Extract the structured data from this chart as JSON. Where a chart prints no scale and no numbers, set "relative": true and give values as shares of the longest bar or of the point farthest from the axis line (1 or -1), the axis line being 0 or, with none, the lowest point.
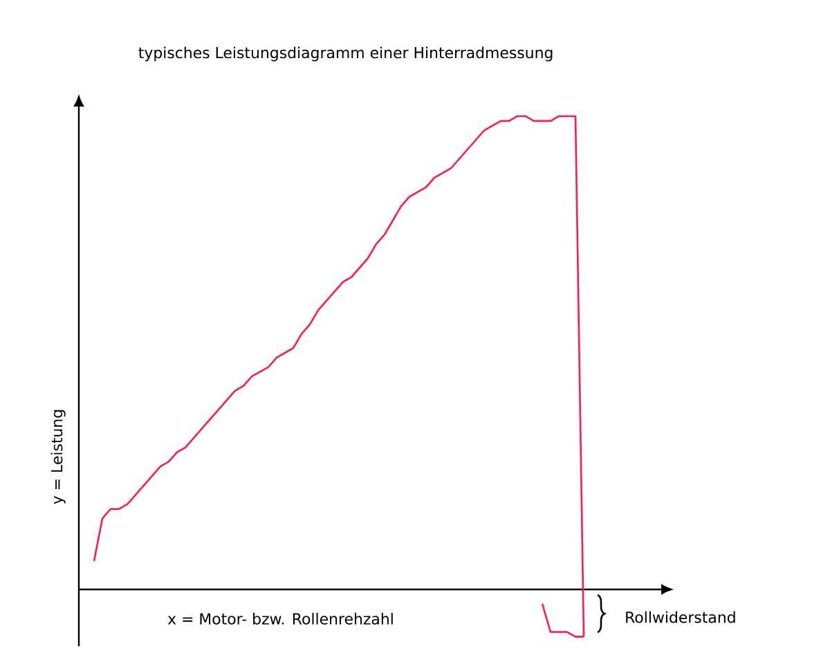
{
  "chart_data": {
    "type": "line",
    "title": "typisches Leistungsdiagramm einer Hinterradmessung",
    "xlabel": "x = Motor- bzw. Rollenrehzahl",
    "ylabel": "y = Leistung",
    "relative": true,
    "annotations": [
      "Rollwiderstand"
    ],
    "categories": [
      null,
      null,
      null,
      null,
      null,
      null,
      null,
      null,
      null,
      null,
      null,
      null,
      null,
      null,
      null,
      null,
      null,
      null,
      null,
      null,
      null,
      null,
      null,
      null,
      null,
      null,
      null,
      null,
      null,
      null,
      null,
      null,
      null,
      null,
      null,
      null,
      null,
      null,
      null,
      null,
      null,
      null,
      null,
      null,
      null,
      null,
      null,
      null,
      null,
      null,
      null,
      null,
      null,
      null,
      null,
      null,
      null,
      null,
      null,
      null
    ],
    "series": [
      {
        "color": "#ff1a4a",
        "values": [
          0.06,
          0.15,
          0.17,
          0.17,
          0.18,
          0.2,
          0.22,
          0.24,
          0.26,
          0.27,
          0.29,
          0.3,
          0.32,
          0.34,
          0.36,
          0.38,
          0.4,
          0.42,
          0.43,
          0.45,
          0.46,
          0.47,
          0.49,
          0.5,
          0.51,
          0.54,
          0.56,
          0.59,
          0.61,
          0.63,
          0.65,
          0.66,
          0.68,
          0.7,
          0.73,
          0.75,
          0.78,
          0.81,
          0.83,
          0.84,
          0.85,
          0.87,
          0.88,
          0.89,
          0.91,
          0.93,
          0.95,
          0.97,
          0.98,
          0.99,
          0.99,
          1.0,
          1.0,
          0.99,
          0.99,
          0.99,
          1.0,
          1.0,
          1.0,
          -0.1
        ]
      },
      {
        "color": "#ff1a4a",
        "values": [
          null,
          null,
          null,
          null,
          null,
          null,
          null,
          null,
          null,
          null,
          null,
          null,
          null,
          null,
          null,
          null,
          null,
          null,
          null,
          null,
          null,
          null,
          null,
          null,
          null,
          null,
          null,
          null,
          null,
          null,
          null,
          null,
          null,
          null,
          null,
          null,
          null,
          null,
          null,
          null,
          null,
          null,
          null,
          null,
          null,
          null,
          null,
          null,
          null,
          null,
          null,
          null,
          null,
          null,
          -0.03,
          -0.09,
          -0.09,
          -0.09,
          -0.1,
          -0.1
        ]
      }
    ]
  }
}
